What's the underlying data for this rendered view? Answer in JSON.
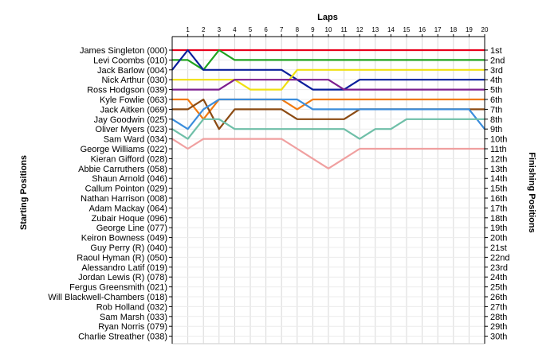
{
  "chart_data": {
    "type": "line",
    "title": "",
    "xlabel": "Laps",
    "ylabel_left": "Starting Positions",
    "ylabel_right": "Finishing Positions",
    "laps": [
      1,
      2,
      3,
      4,
      5,
      6,
      7,
      8,
      9,
      10,
      11,
      12,
      13,
      14,
      15,
      16,
      17,
      18,
      19,
      20
    ],
    "drivers": [
      "James Singleton (000)",
      "Levi Coombs (010)",
      "Jack Barlow (004)",
      "Nick Arthur (030)",
      "Ross Hodgson (039)",
      "Kyle Fowlie (063)",
      "Jack Aitken (069)",
      "Jay Goodwin (025)",
      "Oliver Myers (023)",
      "Sam Ward (034)",
      "George Williams (022)",
      "Kieran Gifford (028)",
      "Abbie Carruthers (058)",
      "Shaun Arnold (046)",
      "Callum Pointon (029)",
      "Nathan Harrison (008)",
      "Adam Mackay (064)",
      "Zubair Hoque (096)",
      "George Line (077)",
      "Keiron Bowness (049)",
      "Guy Perry (R) (040)",
      "Raoul Hyman  (R) (050)",
      "Alessandro Latif (019)",
      "Jordan Lewis (R) (078)",
      "Fergus Greensmith (021)",
      "Will Blackwell-Chambers (018)",
      "Rob Holland (032)",
      "Sam Marsh (033)",
      "Ryan Norris (079)",
      "Charlie Streather (038)"
    ],
    "finishing_labels": [
      "1st",
      "2nd",
      "3rd",
      "4th",
      "5th",
      "6th",
      "7th",
      "8th",
      "9th",
      "10th",
      "11th",
      "12th",
      "13th",
      "14th",
      "15th",
      "16th",
      "17th",
      "18th",
      "19th",
      "20th",
      "21st",
      "22nd",
      "23rd",
      "24th",
      "25th",
      "26th",
      "27th",
      "28th",
      "29th",
      "30th"
    ],
    "series": [
      {
        "color": "#e8001c",
        "positions": [
          1,
          1,
          1,
          1,
          1,
          1,
          1,
          1,
          1,
          1,
          1,
          1,
          1,
          1,
          1,
          1,
          1,
          1,
          1,
          1
        ]
      },
      {
        "color": "#1fa31f",
        "positions": [
          2,
          3,
          1,
          2,
          2,
          2,
          2,
          2,
          2,
          2,
          2,
          2,
          2,
          2,
          2,
          2,
          2,
          2,
          2,
          2
        ]
      },
      {
        "color": "#0a1e9c",
        "positions": [
          1,
          3,
          3,
          3,
          3,
          3,
          3,
          4,
          5,
          5,
          5,
          4,
          4,
          4,
          4,
          4,
          4,
          4,
          4,
          4
        ]
      },
      {
        "color": "#f0e010",
        "positions": [
          4,
          4,
          4,
          4,
          5,
          5,
          5,
          3,
          3,
          3,
          3,
          3,
          3,
          3,
          3,
          3,
          3,
          3,
          3,
          3
        ]
      },
      {
        "color": "#7d1f8f",
        "positions": [
          5,
          5,
          5,
          4,
          4,
          4,
          4,
          4,
          4,
          4,
          5,
          5,
          5,
          5,
          5,
          5,
          5,
          5,
          5,
          5
        ]
      },
      {
        "color": "#f07a10",
        "positions": [
          6,
          8,
          6,
          6,
          6,
          6,
          6,
          7,
          6,
          6,
          6,
          6,
          6,
          6,
          6,
          6,
          6,
          6,
          6,
          6
        ]
      },
      {
        "color": "#8b4a12",
        "positions": [
          7,
          6,
          9,
          7,
          7,
          7,
          7,
          8,
          8,
          8,
          8,
          7,
          7,
          7,
          7,
          7,
          7,
          7,
          7,
          7
        ]
      },
      {
        "color": "#3b8ddc",
        "positions": [
          9,
          7,
          6,
          6,
          6,
          6,
          6,
          6,
          7,
          7,
          7,
          7,
          7,
          7,
          7,
          7,
          7,
          7,
          7,
          9
        ]
      },
      {
        "color": "#6fbfa8",
        "positions": [
          10,
          8,
          8,
          9,
          9,
          9,
          9,
          9,
          9,
          9,
          9,
          10,
          9,
          9,
          8,
          8,
          8,
          8,
          8,
          8
        ]
      },
      {
        "color": "#f0a0a0",
        "positions": [
          11,
          10,
          10,
          10,
          10,
          10,
          10,
          11,
          12,
          13,
          12,
          11,
          11,
          11,
          11,
          11,
          11,
          11,
          11,
          11
        ]
      }
    ]
  }
}
